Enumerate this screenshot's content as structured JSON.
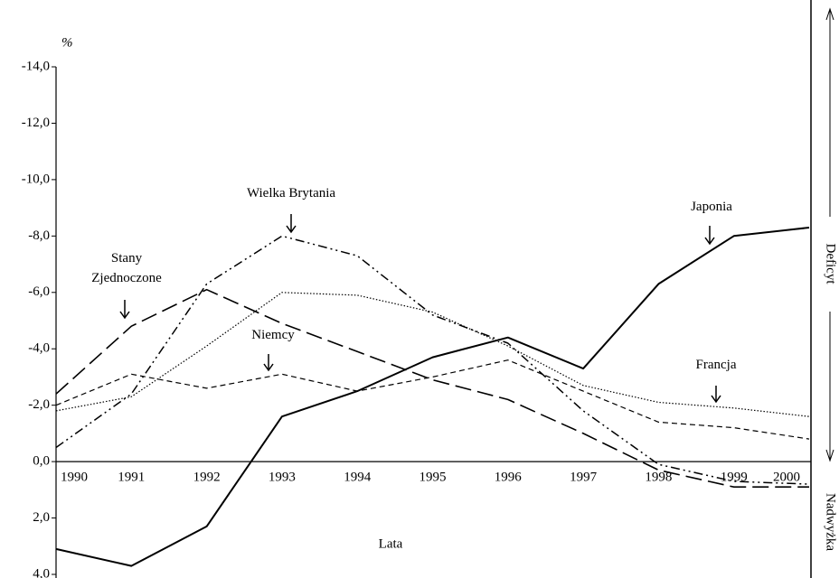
{
  "chart_data": {
    "type": "line",
    "y_unit": "%",
    "xlabel": "Lata",
    "side_labels": {
      "deficit": "Deficyt",
      "surplus": "Nadwyżka"
    },
    "categories": [
      "1990",
      "1991",
      "1992",
      "1993",
      "1994",
      "1995",
      "1996",
      "1997",
      "1998",
      "1999",
      "2000"
    ],
    "ylim": [
      -14,
      4
    ],
    "y_inverted": true,
    "yticks": [
      {
        "value": -14,
        "label": "-14,0"
      },
      {
        "value": -12,
        "label": "-12,0"
      },
      {
        "value": -10,
        "label": "-10,0"
      },
      {
        "value": -8,
        "label": "-8,0"
      },
      {
        "value": -6,
        "label": "-6,0"
      },
      {
        "value": -4,
        "label": "-4,0"
      },
      {
        "value": -2,
        "label": "-2,0"
      },
      {
        "value": 0,
        "label": "0,0"
      },
      {
        "value": 2,
        "label": "2,0"
      },
      {
        "value": 4,
        "label": "4,0"
      }
    ],
    "grid": false,
    "series": [
      {
        "name": "Japonia",
        "color": "#000000",
        "linestyle": "solid",
        "values": [
          3.1,
          3.7,
          2.3,
          -1.6,
          -2.5,
          -3.7,
          -4.4,
          -3.3,
          -6.3,
          -8.0,
          -8.3
        ]
      },
      {
        "name": "Stany Zjednoczone",
        "color": "#000000",
        "linestyle": "long-dash",
        "values": [
          -2.4,
          -4.8,
          -6.1,
          -4.9,
          -3.9,
          -2.9,
          -2.2,
          -1.0,
          0.3,
          0.9,
          0.9
        ]
      },
      {
        "name": "Wielka Brytania",
        "color": "#000000",
        "linestyle": "dash-dot-dot",
        "values": [
          -0.5,
          -2.4,
          -6.3,
          -8.0,
          -7.3,
          -5.2,
          -4.2,
          -1.8,
          0.1,
          0.7,
          0.8
        ]
      },
      {
        "name": "Niemcy",
        "color": "#000000",
        "linestyle": "short-dash",
        "values": [
          -2.0,
          -3.1,
          -2.6,
          -3.1,
          -2.5,
          -3.0,
          -3.6,
          -2.5,
          -1.4,
          -1.2,
          -0.8
        ]
      },
      {
        "name": "Francja",
        "color": "#000000",
        "linestyle": "dotted",
        "values": [
          -1.8,
          -2.3,
          -4.1,
          -6.0,
          -5.9,
          -5.3,
          -4.1,
          -2.7,
          -2.1,
          -1.9,
          -1.6
        ]
      }
    ]
  }
}
